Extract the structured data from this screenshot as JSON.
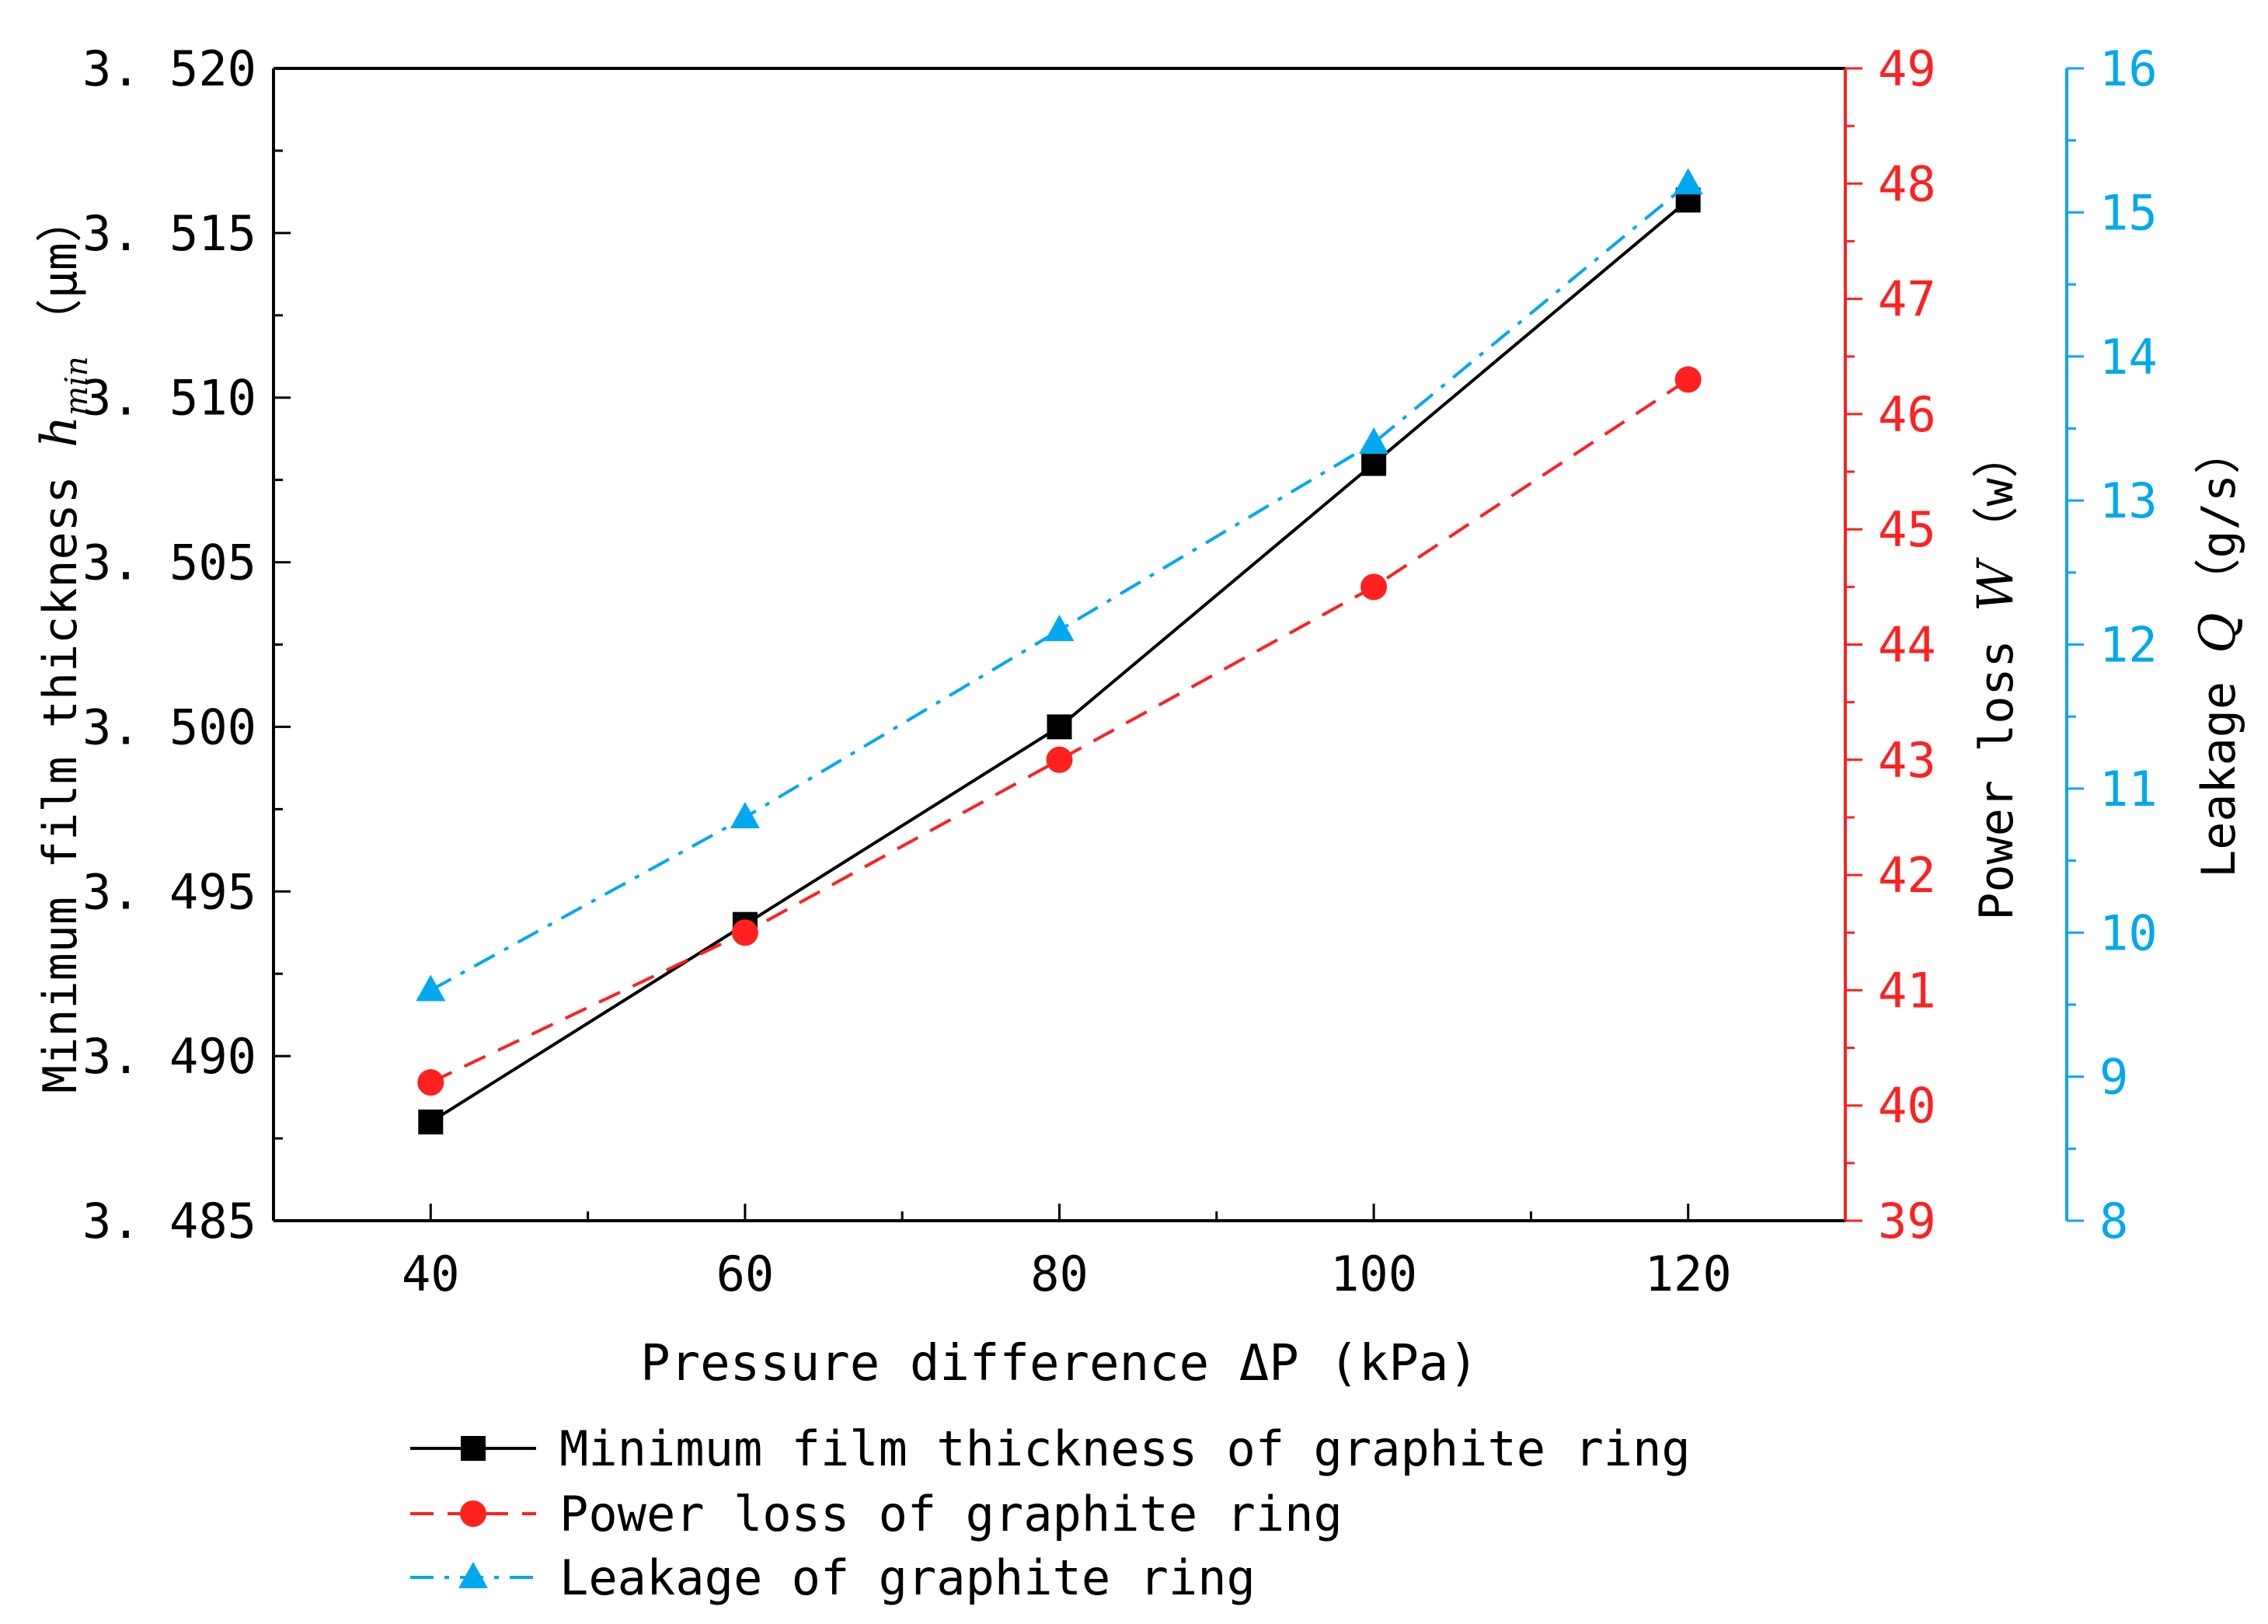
{
  "chart_data": {
    "type": "line",
    "title": "",
    "x": [
      40,
      60,
      80,
      100,
      120
    ],
    "xlim": [
      30,
      130
    ],
    "xticks": [
      40,
      60,
      80,
      100,
      120
    ],
    "xtick_labels": [
      "40",
      "60",
      "80",
      "100",
      "120"
    ],
    "xlabel": "Pressure difference ΔP (kPa)",
    "left_axis": {
      "label_prefix": "Minimum film thickness ",
      "label_var": "h",
      "label_sub": "min",
      "label_unit": "（μm）",
      "lim": [
        3.485,
        3.52
      ],
      "ticks": [
        3.485,
        3.49,
        3.495,
        3.5,
        3.505,
        3.51,
        3.515,
        3.52
      ],
      "tick_labels": [
        "3. 485",
        "3. 490",
        "3. 495",
        "3. 500",
        "3. 505",
        "3. 510",
        "3. 515",
        "3. 520"
      ],
      "color": "#000000"
    },
    "right_axis_1": {
      "label_prefix": "Power loss ",
      "label_var": "W",
      "label_unit": "（w）",
      "lim": [
        39,
        49
      ],
      "ticks": [
        39,
        40,
        41,
        42,
        43,
        44,
        45,
        46,
        47,
        48,
        49
      ],
      "tick_labels": [
        "39",
        "40",
        "41",
        "42",
        "43",
        "44",
        "45",
        "46",
        "47",
        "48",
        "49"
      ],
      "color": "#ff2020"
    },
    "right_axis_2": {
      "label_prefix": "Leakage ",
      "label_var": "Q",
      "label_unit": "（g/s）",
      "lim": [
        8,
        16
      ],
      "ticks": [
        8,
        9,
        10,
        11,
        12,
        13,
        14,
        15,
        16
      ],
      "tick_labels": [
        "8",
        "9",
        "10",
        "11",
        "12",
        "13",
        "14",
        "15",
        "16"
      ],
      "color": "#00a8f0"
    },
    "series": [
      {
        "name": "Minimum film thickness of graphite ring",
        "axis": "left",
        "values": [
          3.488,
          3.494,
          3.5,
          3.508,
          3.516
        ],
        "color": "#000000",
        "marker": "square",
        "dash": "solid"
      },
      {
        "name": "Power loss of graphite ring",
        "axis": "right_1",
        "values": [
          40.2,
          41.5,
          43.0,
          44.5,
          46.3
        ],
        "color": "#ff2020",
        "marker": "circle",
        "dash": "dashed"
      },
      {
        "name": "Leakage of graphite ring",
        "axis": "right_2",
        "values": [
          9.6,
          10.8,
          12.1,
          13.4,
          15.2
        ],
        "color": "#00a8f0",
        "marker": "triangle",
        "dash": "dashdot"
      }
    ],
    "legend_position": "bottom"
  }
}
